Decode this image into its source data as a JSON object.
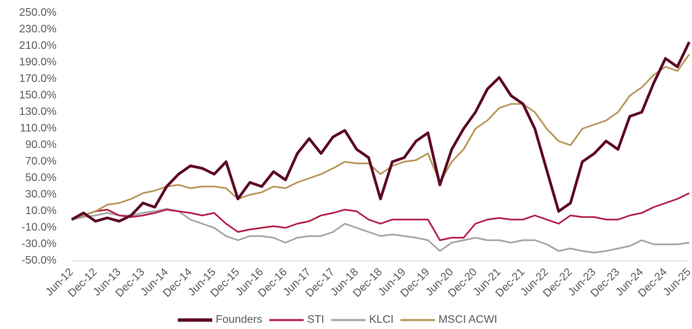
{
  "chart_data": {
    "type": "line",
    "categories": [
      "Jun-12",
      null,
      "Dec-12",
      null,
      "Jun-13",
      null,
      "Dec-13",
      null,
      "Jun-14",
      null,
      "Dec-14",
      null,
      "Jun-15",
      null,
      "Dec-15",
      null,
      "Jun-16",
      null,
      "Dec-16",
      null,
      "Jun-17",
      null,
      "Dec-17",
      null,
      "Jun-18",
      null,
      "Dec-18",
      null,
      "Jun-19",
      null,
      "Dec-19",
      null,
      "Jun-20",
      null,
      "Dec-20",
      null,
      "Jun-21",
      null,
      "Dec-21",
      null,
      "Jun-22",
      null,
      "Dec-22",
      null,
      "Jun-23",
      null,
      "Dec-23",
      null,
      "Jun-24",
      null,
      "Dec-24",
      null,
      "Jun-25"
    ],
    "series": [
      {
        "name": "Founders",
        "color": "#5c0a26",
        "values": [
          0,
          8,
          -2,
          2,
          -2,
          5,
          20,
          15,
          40,
          55,
          65,
          62,
          55,
          70,
          25,
          45,
          40,
          58,
          48,
          80,
          98,
          80,
          100,
          108,
          85,
          75,
          25,
          70,
          75,
          95,
          105,
          42,
          85,
          110,
          130,
          158,
          172,
          150,
          140,
          110,
          60,
          10,
          20,
          70,
          80,
          95,
          85,
          125,
          130,
          165,
          195,
          185,
          215
        ]
      },
      {
        "name": "STI",
        "color": "#b5244a",
        "values": [
          0,
          5,
          10,
          12,
          5,
          3,
          5,
          8,
          12,
          10,
          8,
          5,
          8,
          -5,
          -15,
          -12,
          -10,
          -8,
          -10,
          -5,
          -2,
          5,
          8,
          12,
          10,
          0,
          -5,
          0,
          0,
          0,
          0,
          -25,
          -22,
          -22,
          -5,
          0,
          2,
          0,
          0,
          5,
          0,
          -5,
          5,
          3,
          3,
          0,
          0,
          5,
          8,
          15,
          20,
          25,
          32
        ]
      },
      {
        "name": "KLCI",
        "color": "#a6a6a6",
        "values": [
          0,
          3,
          5,
          8,
          5,
          5,
          8,
          10,
          13,
          10,
          0,
          -5,
          -10,
          -20,
          -25,
          -20,
          -20,
          -22,
          -28,
          -22,
          -20,
          -20,
          -15,
          -5,
          -10,
          -15,
          -20,
          -18,
          -20,
          -22,
          -25,
          -38,
          -28,
          -25,
          -22,
          -25,
          -25,
          -28,
          -25,
          -25,
          -30,
          -38,
          -35,
          -38,
          -40,
          -38,
          -35,
          -32,
          -25,
          -30,
          -30,
          -30,
          -28
        ]
      },
      {
        "name": "MSCI ACWI",
        "color": "#b8975a",
        "values": [
          0,
          5,
          10,
          18,
          20,
          25,
          32,
          35,
          40,
          42,
          38,
          40,
          40,
          38,
          25,
          30,
          33,
          40,
          38,
          45,
          50,
          55,
          62,
          70,
          68,
          68,
          55,
          65,
          70,
          72,
          80,
          45,
          70,
          85,
          110,
          120,
          135,
          140,
          140,
          130,
          110,
          95,
          90,
          110,
          115,
          120,
          130,
          150,
          160,
          175,
          185,
          180,
          200
        ]
      }
    ],
    "ylim": [
      -50,
      250
    ],
    "yticks": [
      {
        "value": -50,
        "label": "-50.0%"
      },
      {
        "value": -30,
        "label": "-30.0%"
      },
      {
        "value": -10,
        "label": "-10.0%"
      },
      {
        "value": 10,
        "label": "10.0%"
      },
      {
        "value": 30,
        "label": "30.0%"
      },
      {
        "value": 50,
        "label": "50.0%"
      },
      {
        "value": 70,
        "label": "70.0%"
      },
      {
        "value": 90,
        "label": "90.0%"
      },
      {
        "value": 110,
        "label": "110.0%"
      },
      {
        "value": 130,
        "label": "130.0%"
      },
      {
        "value": 150,
        "label": "150.0%"
      },
      {
        "value": 170,
        "label": "170.0%"
      },
      {
        "value": 190,
        "label": "190.0%"
      },
      {
        "value": 210,
        "label": "210.0%"
      },
      {
        "value": 230,
        "label": "230.0%"
      },
      {
        "value": 250,
        "label": "250.0%"
      }
    ],
    "legend": "bottom"
  }
}
